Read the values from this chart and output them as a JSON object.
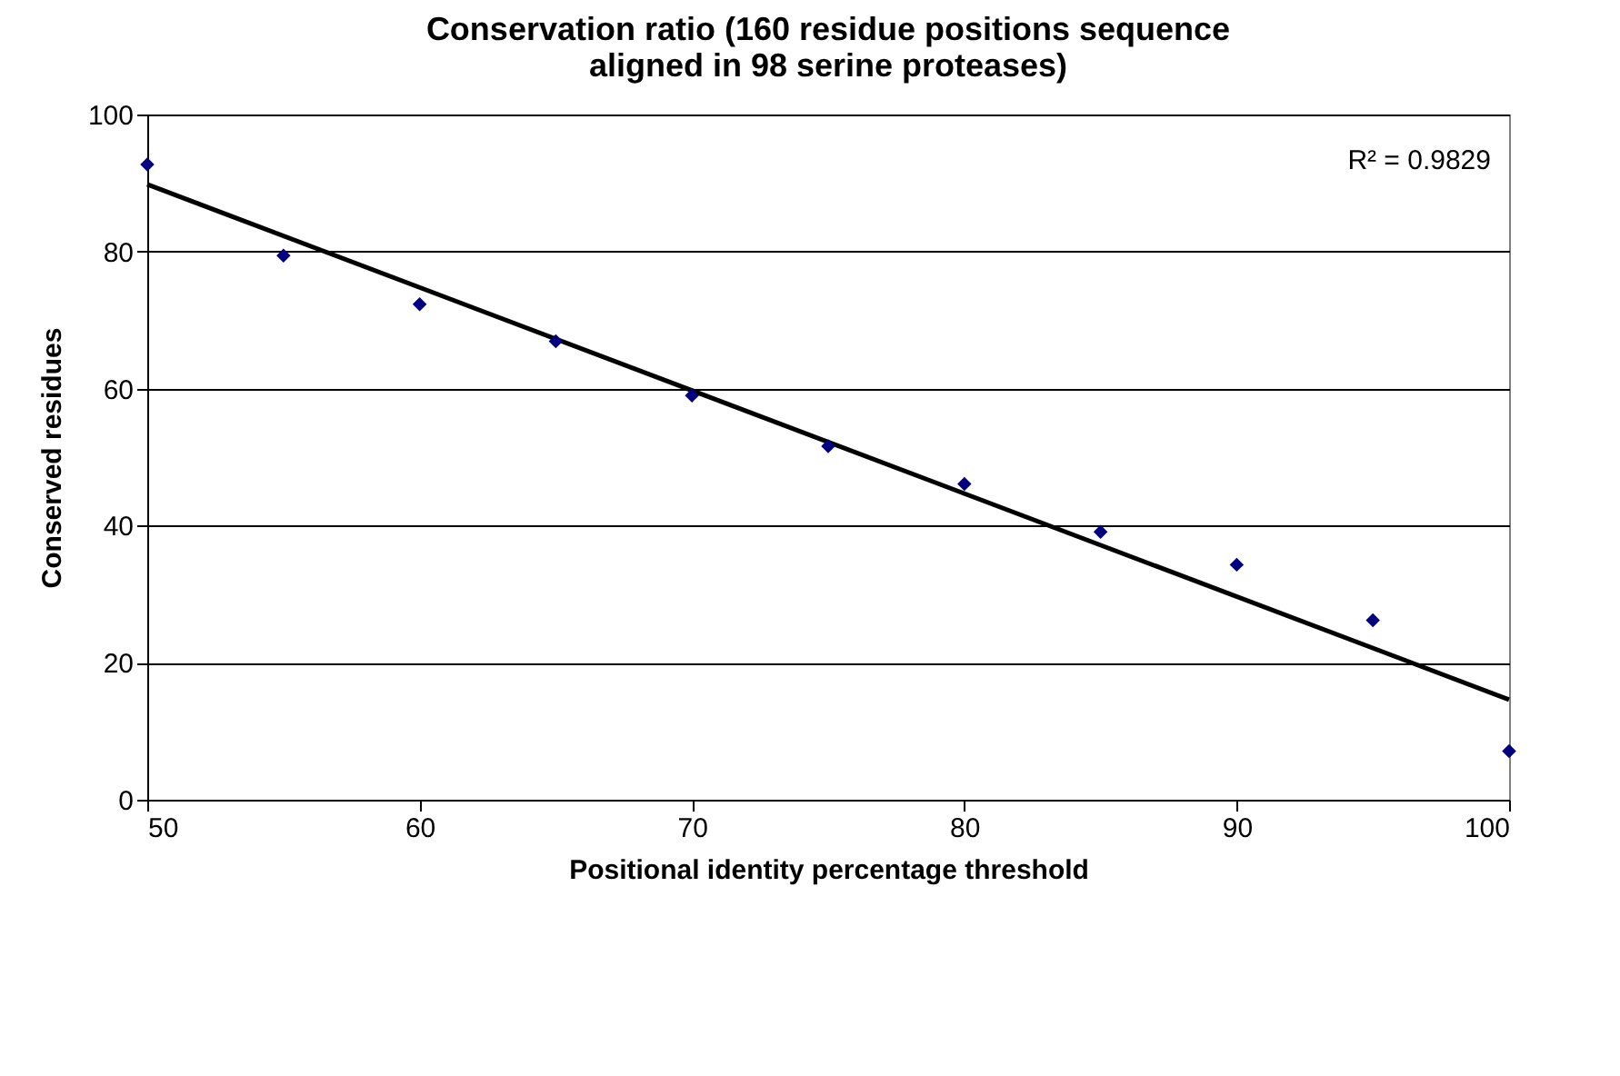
{
  "chart_data": {
    "type": "scatter",
    "title": [
      "Conservation ratio (160 residue positions sequence",
      "aligned in 98 serine proteases)"
    ],
    "xlabel": "Positional identity percentage threshold",
    "ylabel": "Conserved residues",
    "series": [
      {
        "color": "#000080",
        "marker": "diamond",
        "x": [
          50,
          55,
          60,
          65,
          70,
          75,
          80,
          85,
          90,
          95,
          100
        ],
        "values": [
          92.7,
          79.4,
          72.3,
          66.9,
          59,
          51.6,
          46.1,
          39.1,
          34.3,
          26.2,
          7.1
        ]
      },
      {
        "type": "line",
        "color": "#000000",
        "line_style": "solid",
        "x": [
          50,
          100
        ],
        "values": [
          89.8,
          14.6
        ]
      }
    ],
    "xlim": [
      50,
      100
    ],
    "xticks": [
      50,
      60,
      70,
      80,
      90,
      100
    ],
    "ylim": [
      0,
      100
    ],
    "yticks": [
      0,
      20,
      40,
      60,
      80,
      100
    ],
    "grid": "y",
    "annotations": [
      "R² = 0.9829"
    ]
  }
}
